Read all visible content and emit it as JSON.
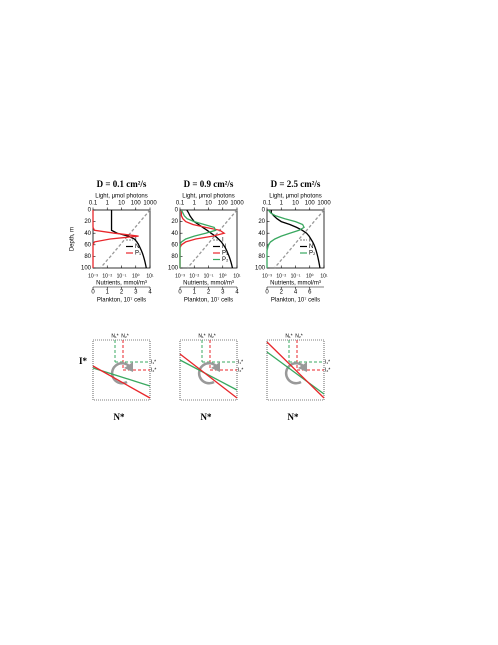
{
  "chart_data": [
    {
      "type": "line",
      "title": "D = 0.1 cm²/s",
      "light_label": "Light, μmol photons",
      "ylabel": "Depth, m",
      "nutrient_label": "Nutrients, mmol/m³",
      "plankton_label": "Plankton, 10⁷ cells",
      "depth": [
        0,
        5,
        10,
        15,
        20,
        25,
        30,
        35,
        40,
        45,
        50,
        55,
        60,
        65,
        70,
        75,
        80,
        85,
        90,
        95,
        100
      ],
      "ylim": [
        0,
        100
      ],
      "yticks": [
        0,
        20,
        40,
        60,
        80,
        100
      ],
      "light_lim": [
        0.1,
        1000
      ],
      "light_ticks": [
        0.1,
        1,
        10,
        100,
        1000
      ],
      "nutrient_lim": [
        0.001,
        10
      ],
      "nutrient_ticks": [
        {
          "value": 0.001,
          "label": "10⁻³"
        },
        {
          "value": 0.01,
          "label": "10⁻²"
        },
        {
          "value": 0.1,
          "label": "10⁻¹"
        },
        {
          "value": 1,
          "label": "10⁰"
        },
        {
          "value": 10,
          "label": "10¹"
        }
      ],
      "plankton_lim": [
        0,
        4
      ],
      "plankton_ticks": [
        0,
        1,
        2,
        3,
        4
      ],
      "series": [
        {
          "name": "I",
          "color": "#999999",
          "dash": true,
          "axis": "light",
          "values": [
            1000,
            670,
            450,
            300,
            200,
            135,
            90,
            61,
            41,
            27,
            18,
            12,
            8.2,
            5.5,
            3.7,
            2.5,
            1.7,
            1.1,
            0.75,
            0.5,
            0.34
          ]
        },
        {
          "name": "N",
          "color": "#000000",
          "axis": "nutrient",
          "values": [
            0.02,
            0.02,
            0.02,
            0.02,
            0.02,
            0.02,
            0.02,
            0.02,
            0.05,
            0.3,
            0.8,
            1.2,
            1.6,
            2,
            2.5,
            3,
            3.5,
            4,
            4.5,
            5,
            5.5
          ]
        },
        {
          "name": "P₁",
          "color": "#e8262b",
          "axis": "plankton",
          "values": [
            0,
            0,
            0,
            0,
            0,
            0,
            0,
            0.1,
            1.5,
            3.2,
            1.2,
            0.1,
            0,
            0,
            0,
            0,
            0,
            0,
            0,
            0,
            0
          ]
        }
      ]
    },
    {
      "type": "line",
      "title": "D = 0.9 cm²/s",
      "light_label": "Light, μmol photons",
      "nutrient_label": "Nutrients, mmol/m³",
      "plankton_label": "Plankton, 10⁷ cells",
      "depth": [
        0,
        5,
        10,
        15,
        20,
        25,
        30,
        35,
        40,
        45,
        50,
        55,
        60,
        65,
        70,
        75,
        80,
        85,
        90,
        95,
        100
      ],
      "ylim": [
        0,
        100
      ],
      "yticks": [
        0,
        20,
        40,
        60,
        80,
        100
      ],
      "light_lim": [
        0.1,
        1000
      ],
      "light_ticks": [
        0.1,
        1,
        10,
        100,
        1000
      ],
      "nutrient_lim": [
        0.001,
        10
      ],
      "nutrient_ticks": [
        {
          "value": 0.001,
          "label": "10⁻³"
        },
        {
          "value": 0.01,
          "label": "10⁻²"
        },
        {
          "value": 0.1,
          "label": "10⁻¹"
        },
        {
          "value": 1,
          "label": "10⁰"
        },
        {
          "value": 10,
          "label": "10¹"
        }
      ],
      "plankton_lim": [
        0,
        4
      ],
      "plankton_ticks": [
        0,
        1,
        2,
        3,
        4
      ],
      "series": [
        {
          "name": "I",
          "color": "#999999",
          "dash": true,
          "axis": "light",
          "values": [
            1000,
            670,
            450,
            300,
            200,
            135,
            90,
            61,
            41,
            27,
            18,
            12,
            8.2,
            5.5,
            3.7,
            2.5,
            1.7,
            1.1,
            0.75,
            0.5,
            0.34
          ]
        },
        {
          "name": "N",
          "color": "#000000",
          "axis": "nutrient",
          "values": [
            0.003,
            0.004,
            0.005,
            0.007,
            0.01,
            0.02,
            0.04,
            0.08,
            0.15,
            0.3,
            0.5,
            0.8,
            1.1,
            1.5,
            1.9,
            2.3,
            2.8,
            3.3,
            3.8,
            4.3,
            4.8
          ]
        },
        {
          "name": "P₁",
          "color": "#e8262b",
          "axis": "plankton",
          "values": [
            0.1,
            0.1,
            0.1,
            0.2,
            0.4,
            0.9,
            1.8,
            2.8,
            3.1,
            2.3,
            1.1,
            0.4,
            0.1,
            0,
            0,
            0,
            0,
            0,
            0,
            0,
            0
          ]
        },
        {
          "name": "P₂",
          "color": "#3aa860",
          "axis": "plankton",
          "values": [
            0.1,
            0.2,
            0.3,
            0.5,
            1,
            1.7,
            2.4,
            2.5,
            1.8,
            1,
            0.4,
            0.1,
            0,
            0,
            0,
            0,
            0,
            0,
            0,
            0,
            0
          ]
        }
      ]
    },
    {
      "type": "line",
      "title": "D = 2.5 cm²/s",
      "light_label": "Light, μmol photons",
      "nutrient_label": "Nutrients, mmol/m³",
      "plankton_label": "Plankton, 10⁷ cells",
      "depth": [
        0,
        5,
        10,
        15,
        20,
        25,
        30,
        35,
        40,
        45,
        50,
        55,
        60,
        65,
        70,
        75,
        80,
        85,
        90,
        95,
        100
      ],
      "ylim": [
        0,
        100
      ],
      "yticks": [
        0,
        20,
        40,
        60,
        80,
        100
      ],
      "light_lim": [
        0.1,
        1000
      ],
      "light_ticks": [
        0.1,
        1,
        10,
        100,
        1000
      ],
      "nutrient_lim": [
        0.001,
        10
      ],
      "nutrient_ticks": [
        {
          "value": 0.001,
          "label": "10⁻³"
        },
        {
          "value": 0.01,
          "label": "10⁻²"
        },
        {
          "value": 0.1,
          "label": "10⁻¹"
        },
        {
          "value": 1,
          "label": "10⁰"
        },
        {
          "value": 10,
          "label": "10¹"
        }
      ],
      "plankton_lim": [
        0,
        8
      ],
      "plankton_ticks": [
        0,
        2,
        4,
        6
      ],
      "series": [
        {
          "name": "I",
          "color": "#999999",
          "dash": true,
          "axis": "light",
          "values": [
            1000,
            670,
            450,
            300,
            200,
            135,
            90,
            61,
            41,
            27,
            18,
            12,
            8.2,
            5.5,
            3.7,
            2.5,
            1.7,
            1.1,
            0.75,
            0.5,
            0.34
          ]
        },
        {
          "name": "N",
          "color": "#000000",
          "axis": "nutrient",
          "values": [
            0.002,
            0.002,
            0.003,
            0.005,
            0.01,
            0.04,
            0.12,
            0.3,
            0.6,
            0.9,
            1.2,
            1.6,
            2,
            2.4,
            2.8,
            3.2,
            3.6,
            4,
            4.4,
            4.8,
            5.2
          ]
        },
        {
          "name": "P₂",
          "color": "#3aa860",
          "axis": "plankton",
          "values": [
            0.2,
            0.5,
            1.2,
            2.5,
            4,
            5,
            5.2,
            4.5,
            3.2,
            2,
            1.1,
            0.5,
            0.2,
            0.1,
            0,
            0,
            0,
            0,
            0,
            0,
            0
          ]
        }
      ]
    }
  ],
  "diagrams": [
    {
      "ylabel": "I*",
      "xlabel": "N*",
      "n1": "N₁*",
      "n2": "N₂*",
      "i1": "I₁*",
      "i2": "I₂*"
    },
    {
      "xlabel": "N*",
      "n1": "N₁*",
      "n2": "N₂*",
      "i1": "I₁*",
      "i2": "I₂*"
    },
    {
      "xlabel": "N*",
      "n1": "N₁*",
      "n2": "N₂*",
      "i1": "I₁*",
      "i2": "I₂*"
    }
  ]
}
